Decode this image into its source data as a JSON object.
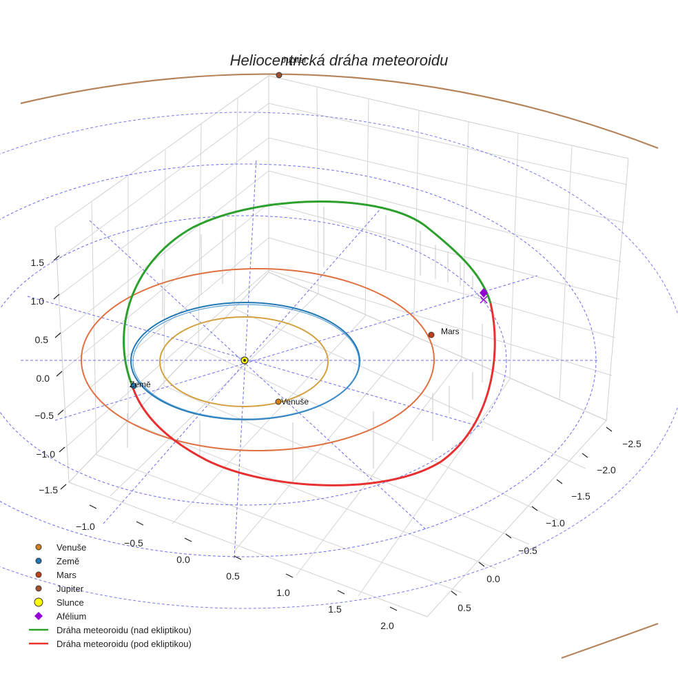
{
  "chart_data": {
    "type": "scatter",
    "title": "Heliocentrická dráha meteoroidu",
    "axes": {
      "x_ticks": [
        "−1.0",
        "−0.5",
        "0.0",
        "0.5",
        "1.0",
        "1.5",
        "2.0"
      ],
      "y_ticks": [
        "−2.5",
        "−2.0",
        "−1.5",
        "−1.0",
        "−0.5",
        "0.0",
        "0.5"
      ],
      "z_ticks": [
        "1.5",
        "1.0",
        "0.5",
        "0.0",
        "−0.5",
        "−1.0",
        "−1.5"
      ],
      "grid": true
    },
    "colors": {
      "venus": "#d4a03f",
      "earth": "#1f77b4",
      "mars": "#e0703f",
      "jupiter": "#b5835a",
      "sun": "#ffff00",
      "aphelion": "#9400d3",
      "above": "#2ca02c",
      "below": "#e83030",
      "grid": "#d0d0d0",
      "dashed": "#6a6aee"
    },
    "labels": {
      "jupiter": "Jupiter",
      "mars": "Mars",
      "earth": "Země",
      "venus": "Venuše"
    },
    "legend": {
      "position": "bottom-left",
      "items": [
        {
          "name": "Venuše",
          "kind": "dot",
          "color": "#d4801a"
        },
        {
          "name": "Země",
          "kind": "dot",
          "color": "#1f77b4"
        },
        {
          "name": "Mars",
          "kind": "dot",
          "color": "#c0401a"
        },
        {
          "name": "Jupiter",
          "kind": "dot",
          "color": "#a0522d"
        },
        {
          "name": "Slunce",
          "kind": "sun",
          "color": "#ffff00"
        },
        {
          "name": "Afélium",
          "kind": "diamond",
          "color": "#9400d3"
        },
        {
          "name": "Dráha meteoroidu (nad ekliptikou)",
          "kind": "line",
          "color": "#2ca02c"
        },
        {
          "name": "Dráha meteoroidu (pod ekliptikou)",
          "kind": "line",
          "color": "#e83030"
        }
      ]
    }
  }
}
